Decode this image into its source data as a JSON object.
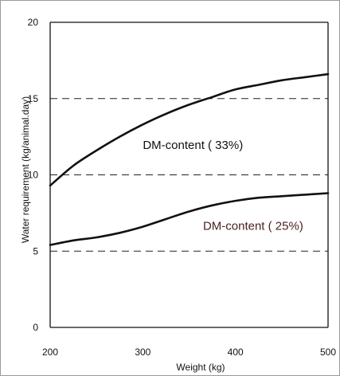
{
  "chart_data": {
    "type": "line",
    "xlabel": "Weight (kg)",
    "ylabel": "Water requirement (kg/animal.day)",
    "xlim": [
      200,
      500
    ],
    "ylim": [
      0,
      20
    ],
    "xticks": [
      200,
      300,
      400,
      500
    ],
    "xtick_labels": [
      "200",
      "300",
      "400",
      "500"
    ],
    "yticks": [
      0,
      5,
      10,
      15,
      20
    ],
    "ytick_labels": [
      "0",
      "5",
      "10",
      "15",
      "20"
    ],
    "reference_lines": [
      5,
      10,
      15
    ],
    "grid": false,
    "legend": "none",
    "series": [
      {
        "x": [
          200,
          225,
          250,
          275,
          300,
          325,
          350,
          375,
          400,
          425,
          450,
          475,
          500
        ],
        "values": [
          9.3,
          10.6,
          11.6,
          12.5,
          13.3,
          14.0,
          14.6,
          15.1,
          15.6,
          15.9,
          16.2,
          16.4,
          16.6
        ],
        "color": "#111111"
      },
      {
        "x": [
          200,
          225,
          250,
          275,
          300,
          325,
          350,
          375,
          400,
          425,
          450,
          475,
          500
        ],
        "values": [
          5.4,
          5.7,
          5.9,
          6.2,
          6.6,
          7.1,
          7.6,
          8.0,
          8.3,
          8.5,
          8.6,
          8.7,
          8.8
        ],
        "color": "#111111"
      }
    ],
    "annotations": [
      {
        "text": "DM-content ( 33%)",
        "x": 300,
        "y": 11.7,
        "color": "#111111"
      },
      {
        "text": "DM-content ( 25%)",
        "x": 365,
        "y": 6.4,
        "color": "#4a2222"
      }
    ]
  }
}
